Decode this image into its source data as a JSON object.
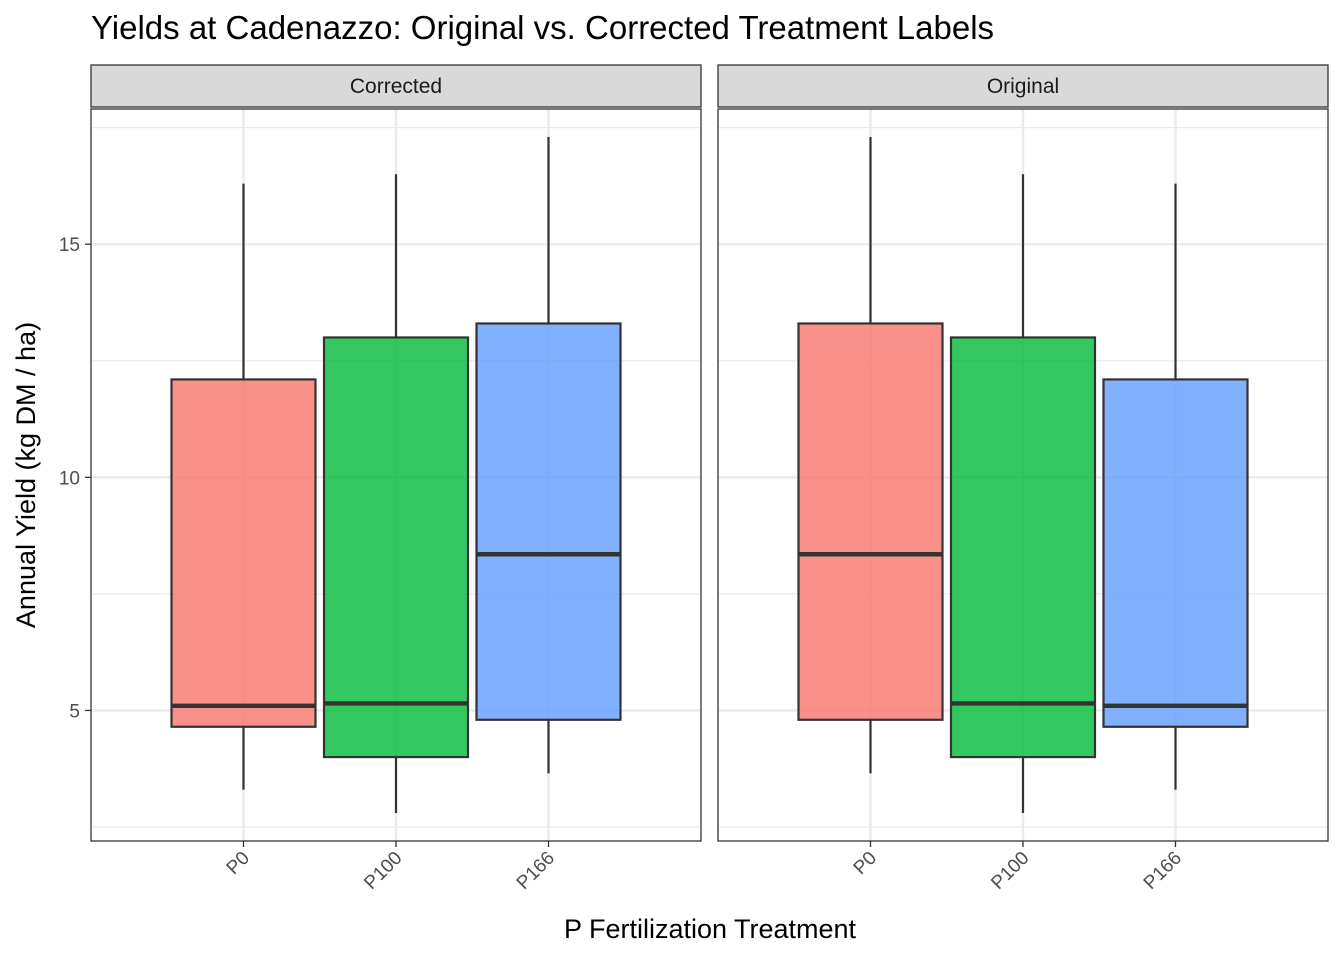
{
  "chart_data": {
    "type": "box",
    "title": "Yields at Cadenazzo: Original vs. Corrected Treatment Labels",
    "xlabel": "P Fertilization Treatment",
    "ylabel": "Annual Yield (kg DM / ha)",
    "ylim": [
      2.2,
      17.9
    ],
    "yticks": [
      5,
      10,
      15
    ],
    "grid": true,
    "categories": [
      "P0",
      "P100",
      "P166"
    ],
    "colors": {
      "P0": "#F8766D",
      "P100": "#00BA38",
      "P166": "#619CFF"
    },
    "panels": [
      {
        "label": "Corrected",
        "boxes": [
          {
            "category": "P0",
            "min": 3.3,
            "q1": 4.65,
            "median": 5.1,
            "q3": 12.1,
            "max": 16.3
          },
          {
            "category": "P100",
            "min": 2.8,
            "q1": 4.0,
            "median": 5.15,
            "q3": 13.0,
            "max": 16.5
          },
          {
            "category": "P166",
            "min": 3.65,
            "q1": 4.8,
            "median": 8.35,
            "q3": 13.3,
            "max": 17.3
          }
        ]
      },
      {
        "label": "Original",
        "boxes": [
          {
            "category": "P0",
            "min": 3.65,
            "q1": 4.8,
            "median": 8.35,
            "q3": 13.3,
            "max": 17.3
          },
          {
            "category": "P100",
            "min": 2.8,
            "q1": 4.0,
            "median": 5.15,
            "q3": 13.0,
            "max": 16.5
          },
          {
            "category": "P166",
            "min": 3.3,
            "q1": 4.65,
            "median": 5.1,
            "q3": 12.1,
            "max": 16.3
          }
        ]
      }
    ]
  }
}
